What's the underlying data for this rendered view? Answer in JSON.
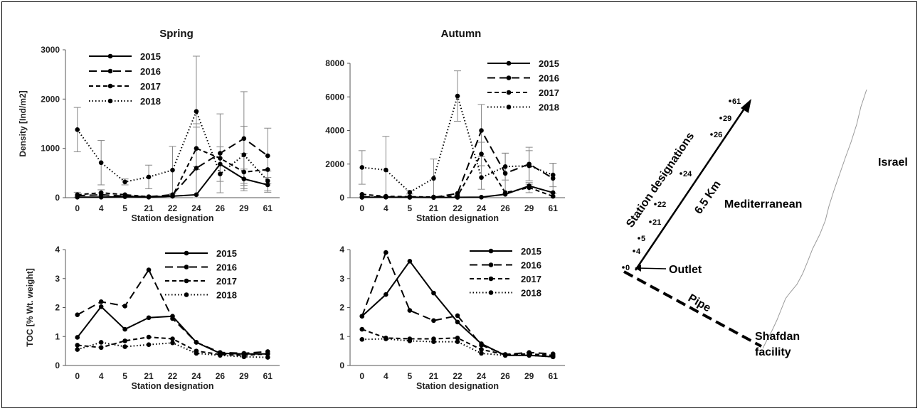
{
  "chart_data": [
    {
      "id": "spring-density",
      "type": "line",
      "title": "Spring",
      "xlabel": "Station designation",
      "ylabel": "Density [Ind/m2]",
      "categories": [
        "0",
        "4",
        "5",
        "21",
        "22",
        "24",
        "26",
        "29",
        "61"
      ],
      "x_tick_labels": [
        "0",
        "4",
        "5",
        "21",
        "22",
        "24",
        "26",
        "29",
        "61"
      ],
      "ylim": [
        0,
        3000
      ],
      "yticks": [
        "0",
        "1000",
        "2000",
        "3000"
      ],
      "legend_position": "top-left",
      "error_bars": true,
      "series": [
        {
          "name": "2015",
          "style": "solid",
          "values": [
            10,
            10,
            20,
            10,
            30,
            60,
            680,
            380,
            260
          ],
          "err": [
            0,
            0,
            0,
            0,
            0,
            0,
            350,
            200,
            150
          ]
        },
        {
          "name": "2016",
          "style": "dashed",
          "values": [
            40,
            60,
            30,
            20,
            60,
            600,
            900,
            1200,
            850
          ],
          "err": [
            0,
            0,
            0,
            0,
            0,
            900,
            800,
            950,
            560
          ]
        },
        {
          "name": "2017",
          "style": "shortdash",
          "values": [
            60,
            100,
            60,
            20,
            30,
            1000,
            800,
            520,
            570
          ],
          "err": [
            50,
            60,
            0,
            0,
            0,
            430,
            0,
            380,
            0
          ]
        },
        {
          "name": "2018",
          "style": "dotted",
          "values": [
            1380,
            710,
            320,
            420,
            560,
            1750,
            480,
            870,
            340
          ],
          "err": [
            450,
            450,
            60,
            240,
            480,
            1120,
            0,
            580,
            200
          ]
        }
      ]
    },
    {
      "id": "autumn-density",
      "type": "line",
      "title": "Autumn",
      "xlabel": "Station designation",
      "ylabel": "",
      "categories": [
        "0",
        "4",
        "5",
        "21",
        "22",
        "24",
        "26",
        "29",
        "61"
      ],
      "x_tick_labels": [
        "0",
        "4",
        "5",
        "21",
        "22",
        "24",
        "26",
        "29",
        "61"
      ],
      "ylim": [
        0,
        8000
      ],
      "yticks": [
        "0",
        "2000",
        "4000",
        "6000",
        "8000"
      ],
      "legend_position": "top-right",
      "error_bars": true,
      "series": [
        {
          "name": "2015",
          "style": "solid",
          "values": [
            20,
            30,
            20,
            10,
            20,
            30,
            200,
            700,
            300
          ],
          "err": [
            0,
            0,
            0,
            0,
            0,
            0,
            0,
            100,
            0
          ]
        },
        {
          "name": "2016",
          "style": "dashed",
          "values": [
            50,
            40,
            30,
            20,
            250,
            4000,
            1450,
            2000,
            1150
          ],
          "err": [
            0,
            0,
            0,
            0,
            0,
            1550,
            1200,
            1000,
            900
          ]
        },
        {
          "name": "2017",
          "style": "shortdash",
          "values": [
            200,
            80,
            60,
            40,
            100,
            2600,
            300,
            600,
            80
          ],
          "err": [
            0,
            0,
            0,
            0,
            0,
            700,
            0,
            300,
            0
          ]
        },
        {
          "name": "2018",
          "style": "dotted",
          "values": [
            1800,
            1650,
            320,
            1150,
            6050,
            1200,
            1850,
            1900,
            1350
          ],
          "err": [
            1000,
            2000,
            100,
            1150,
            1500,
            700,
            800,
            900,
            700
          ]
        }
      ]
    },
    {
      "id": "spring-toc",
      "type": "line",
      "title": "",
      "xlabel": "Station designation",
      "ylabel": "TOC [% Wt. weight]",
      "categories": [
        "0",
        "4",
        "5",
        "21",
        "22",
        "24",
        "26",
        "29",
        "61"
      ],
      "x_tick_labels": [
        "0",
        "4",
        "5",
        "21",
        "22",
        "24",
        "26",
        "29",
        "61"
      ],
      "ylim": [
        0,
        4
      ],
      "yticks": [
        "0",
        "1",
        "2",
        "3",
        "4"
      ],
      "legend_position": "top-right",
      "error_bars": false,
      "series": [
        {
          "name": "2015",
          "style": "solid",
          "values": [
            0.97,
            2.03,
            1.25,
            1.65,
            1.7,
            0.8,
            0.42,
            0.4,
            0.4
          ]
        },
        {
          "name": "2016",
          "style": "dashed",
          "values": [
            1.75,
            2.2,
            2.05,
            3.3,
            1.62,
            0.8,
            0.45,
            0.42,
            0.48
          ]
        },
        {
          "name": "2017",
          "style": "shortdash",
          "values": [
            0.7,
            0.62,
            0.85,
            0.98,
            0.92,
            0.5,
            0.38,
            0.35,
            0.4
          ]
        },
        {
          "name": "2018",
          "style": "dotted",
          "values": [
            0.55,
            0.8,
            0.65,
            0.72,
            0.78,
            0.42,
            0.35,
            0.3,
            0.28
          ]
        }
      ]
    },
    {
      "id": "autumn-toc",
      "type": "line",
      "title": "",
      "xlabel": "Station designation",
      "ylabel": "",
      "categories": [
        "0",
        "4",
        "5",
        "21",
        "22",
        "24",
        "26",
        "29",
        "61"
      ],
      "x_tick_labels": [
        "0",
        "4",
        "5",
        "21",
        "22",
        "24",
        "26",
        "29",
        "61"
      ],
      "ylim": [
        0,
        4
      ],
      "yticks": [
        "0",
        "1",
        "2",
        "3",
        "4"
      ],
      "legend_position": "top-right",
      "error_bars": false,
      "series": [
        {
          "name": "2015",
          "style": "solid",
          "values": [
            1.7,
            2.45,
            3.6,
            2.5,
            1.5,
            0.75,
            0.35,
            0.35,
            0.3
          ]
        },
        {
          "name": "2016",
          "style": "dashed",
          "values": [
            1.7,
            3.9,
            1.9,
            1.55,
            1.72,
            0.7,
            0.38,
            0.45,
            0.4
          ]
        },
        {
          "name": "2017",
          "style": "shortdash",
          "values": [
            1.25,
            0.95,
            0.92,
            0.92,
            0.95,
            0.55,
            0.38,
            0.4,
            0.35
          ]
        },
        {
          "name": "2018",
          "style": "dotted",
          "values": [
            0.9,
            0.92,
            0.85,
            0.82,
            0.82,
            0.42,
            0.35,
            0.35,
            0.3
          ]
        }
      ]
    }
  ],
  "map": {
    "station_axis_label": "Station designations",
    "distance_label": "6.5 Km",
    "stations": [
      "0",
      "4",
      "5",
      "21",
      "22",
      "24",
      "26",
      "29",
      "61"
    ],
    "outlet_label": "Outlet",
    "pipe_label": "Pipe",
    "facility_label_line1": "Shafdan",
    "facility_label_line2": "facility",
    "sea_label": "Mediterranean",
    "country_label": "Israel"
  }
}
